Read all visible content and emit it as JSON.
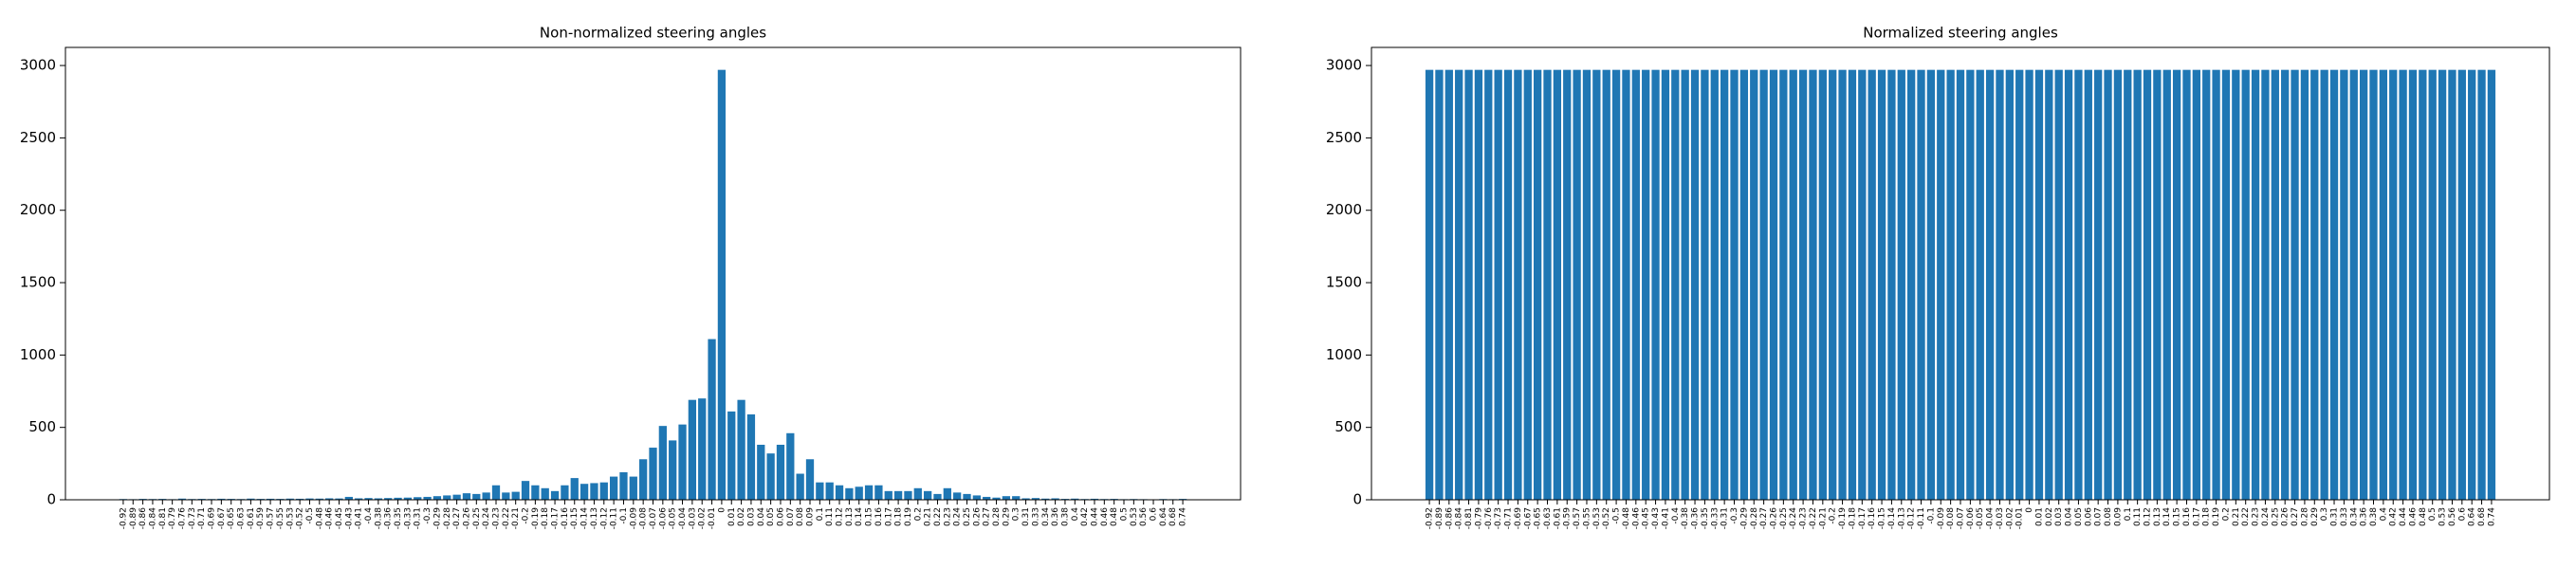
{
  "chart_data": [
    {
      "type": "bar",
      "title": "Non-normalized steering angles",
      "color": "#1f77b4",
      "categories": [
        -0.92,
        -0.89,
        -0.86,
        -0.84,
        -0.81,
        -0.79,
        -0.76,
        -0.73,
        -0.71,
        -0.69,
        -0.67,
        -0.65,
        -0.63,
        -0.61,
        -0.59,
        -0.57,
        -0.55,
        -0.53,
        -0.52,
        -0.5,
        -0.48,
        -0.46,
        -0.45,
        -0.43,
        -0.41,
        -0.4,
        -0.38,
        -0.36,
        -0.35,
        -0.33,
        -0.31,
        -0.3,
        -0.29,
        -0.28,
        -0.27,
        -0.26,
        -0.25,
        -0.24,
        -0.23,
        -0.22,
        -0.21,
        -0.2,
        -0.19,
        -0.18,
        -0.17,
        -0.16,
        -0.15,
        -0.14,
        -0.13,
        -0.12,
        -0.11,
        -0.1,
        -0.09,
        -0.08,
        -0.07,
        -0.06,
        -0.05,
        -0.04,
        -0.03,
        -0.02,
        -0.01,
        0,
        0.01,
        0.02,
        0.03,
        0.04,
        0.05,
        0.06,
        0.07,
        0.08,
        0.09,
        0.1,
        0.11,
        0.12,
        0.13,
        0.14,
        0.15,
        0.16,
        0.17,
        0.18,
        0.19,
        0.2,
        0.21,
        0.22,
        0.23,
        0.24,
        0.25,
        0.26,
        0.27,
        0.28,
        0.29,
        0.3,
        0.31,
        0.33,
        0.34,
        0.36,
        0.38,
        0.4,
        0.42,
        0.44,
        0.46,
        0.48,
        0.5,
        0.53,
        0.56,
        0.6,
        0.64,
        0.68,
        0.74
      ],
      "values": [
        5,
        4,
        6,
        5,
        6,
        4,
        8,
        5,
        6,
        5,
        7,
        6,
        5,
        8,
        6,
        7,
        6,
        8,
        7,
        9,
        8,
        10,
        9,
        20,
        10,
        12,
        10,
        12,
        14,
        15,
        18,
        20,
        25,
        30,
        35,
        45,
        40,
        50,
        100,
        50,
        55,
        130,
        100,
        80,
        60,
        100,
        150,
        110,
        115,
        120,
        160,
        190,
        160,
        280,
        360,
        510,
        410,
        520,
        690,
        700,
        1110,
        2970,
        610,
        690,
        590,
        380,
        320,
        380,
        460,
        180,
        280,
        120,
        120,
        100,
        80,
        90,
        100,
        100,
        60,
        60,
        60,
        80,
        60,
        40,
        80,
        50,
        40,
        30,
        20,
        15,
        25,
        25,
        10,
        12,
        8,
        10,
        6,
        8,
        5,
        7,
        5,
        6,
        4,
        5,
        4,
        3,
        5,
        4,
        6
      ],
      "ylim": [
        0,
        3125
      ],
      "yticks": [
        0,
        500,
        1000,
        1500,
        2000,
        2500,
        3000
      ]
    },
    {
      "type": "bar",
      "title": "Normalized steering angles",
      "color": "#1f77b4",
      "categories": [
        -0.92,
        -0.89,
        -0.86,
        -0.84,
        -0.81,
        -0.79,
        -0.76,
        -0.73,
        -0.71,
        -0.69,
        -0.67,
        -0.65,
        -0.63,
        -0.61,
        -0.59,
        -0.57,
        -0.55,
        -0.53,
        -0.52,
        -0.5,
        -0.48,
        -0.46,
        -0.45,
        -0.43,
        -0.41,
        -0.4,
        -0.38,
        -0.36,
        -0.35,
        -0.33,
        -0.31,
        -0.3,
        -0.29,
        -0.28,
        -0.27,
        -0.26,
        -0.25,
        -0.24,
        -0.23,
        -0.22,
        -0.21,
        -0.2,
        -0.19,
        -0.18,
        -0.17,
        -0.16,
        -0.15,
        -0.14,
        -0.13,
        -0.12,
        -0.11,
        -0.1,
        -0.09,
        -0.08,
        -0.07,
        -0.06,
        -0.05,
        -0.04,
        -0.03,
        -0.02,
        -0.01,
        0,
        0.01,
        0.02,
        0.03,
        0.04,
        0.05,
        0.06,
        0.07,
        0.08,
        0.09,
        0.1,
        0.11,
        0.12,
        0.13,
        0.14,
        0.15,
        0.16,
        0.17,
        0.18,
        0.19,
        0.2,
        0.21,
        0.22,
        0.23,
        0.24,
        0.25,
        0.26,
        0.27,
        0.28,
        0.29,
        0.3,
        0.31,
        0.33,
        0.34,
        0.36,
        0.38,
        0.4,
        0.42,
        0.44,
        0.46,
        0.48,
        0.5,
        0.53,
        0.56,
        0.6,
        0.64,
        0.68,
        0.74
      ],
      "values": [
        2970,
        2970,
        2970,
        2970,
        2970,
        2970,
        2970,
        2970,
        2970,
        2970,
        2970,
        2970,
        2970,
        2970,
        2970,
        2970,
        2970,
        2970,
        2970,
        2970,
        2970,
        2970,
        2970,
        2970,
        2970,
        2970,
        2970,
        2970,
        2970,
        2970,
        2970,
        2970,
        2970,
        2970,
        2970,
        2970,
        2970,
        2970,
        2970,
        2970,
        2970,
        2970,
        2970,
        2970,
        2970,
        2970,
        2970,
        2970,
        2970,
        2970,
        2970,
        2970,
        2970,
        2970,
        2970,
        2970,
        2970,
        2970,
        2970,
        2970,
        2970,
        2970,
        2970,
        2970,
        2970,
        2970,
        2970,
        2970,
        2970,
        2970,
        2970,
        2970,
        2970,
        2970,
        2970,
        2970,
        2970,
        2970,
        2970,
        2970,
        2970,
        2970,
        2970,
        2970,
        2970,
        2970,
        2970,
        2970,
        2970,
        2970,
        2970,
        2970,
        2970,
        2970,
        2970,
        2970,
        2970,
        2970,
        2970,
        2970,
        2970,
        2970,
        2970,
        2970,
        2970,
        2970,
        2970,
        2970,
        2970
      ],
      "ylim": [
        0,
        3125
      ],
      "yticks": [
        0,
        500,
        1000,
        1500,
        2000,
        2500,
        3000
      ]
    }
  ]
}
